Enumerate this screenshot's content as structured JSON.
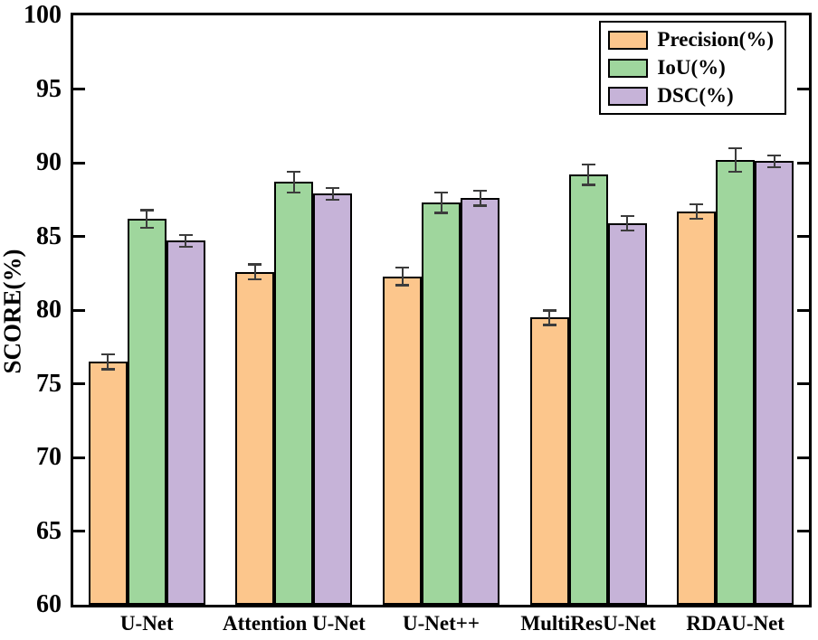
{
  "chart_data": {
    "type": "bar",
    "title": "",
    "xlabel": "",
    "ylabel": "SCORE(%)",
    "ylim": [
      60,
      100
    ],
    "yticks": [
      60,
      65,
      70,
      75,
      80,
      85,
      90,
      95,
      100
    ],
    "grid": false,
    "legend_position": "top-right",
    "categories": [
      "U-Net",
      "Attention U-Net",
      "U-Net++",
      "MultiResU-Net",
      "RDAU-Net"
    ],
    "series": [
      {
        "name": "Precision(%)",
        "color": "#FCC68C",
        "values": [
          76.5,
          82.6,
          82.3,
          79.5,
          86.7
        ],
        "errors": [
          0.5,
          0.5,
          0.6,
          0.5,
          0.5
        ]
      },
      {
        "name": "IoU(%)",
        "color": "#9FD69D",
        "values": [
          86.2,
          88.7,
          87.3,
          89.2,
          90.2
        ],
        "errors": [
          0.6,
          0.7,
          0.7,
          0.7,
          0.8
        ]
      },
      {
        "name": "DSC(%)",
        "color": "#C6B3D8",
        "values": [
          84.7,
          87.9,
          87.6,
          85.9,
          90.1
        ],
        "errors": [
          0.4,
          0.4,
          0.5,
          0.5,
          0.4
        ]
      }
    ],
    "bar_edge_color": "#000000",
    "error_bar_color": "#3c3c3c",
    "axis_color": "#000000",
    "background_color": "#ffffff"
  }
}
